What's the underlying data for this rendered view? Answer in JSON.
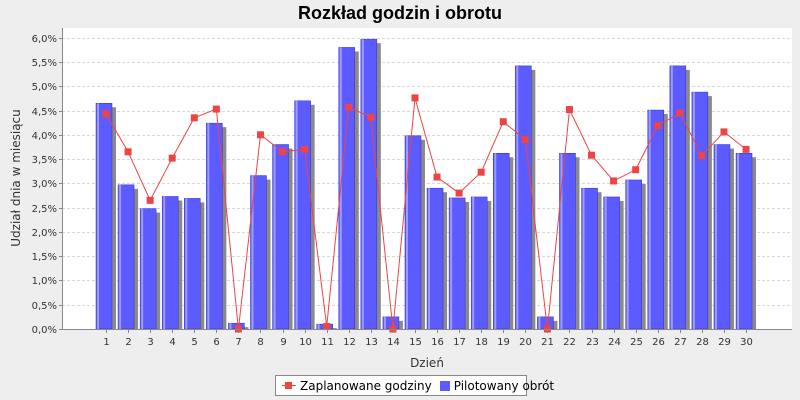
{
  "chart_data": {
    "type": "bar",
    "title": "Rozkład godzin i obrotu",
    "xlabel": "Dzień",
    "ylabel": "Udział dnia w miesiącu",
    "categories": [
      "1",
      "2",
      "3",
      "4",
      "5",
      "6",
      "7",
      "8",
      "9",
      "10",
      "11",
      "12",
      "13",
      "14",
      "15",
      "16",
      "17",
      "18",
      "19",
      "20",
      "21",
      "22",
      "23",
      "24",
      "25",
      "26",
      "27",
      "28",
      "29",
      "30"
    ],
    "ylim": [
      0,
      0.062
    ],
    "yticks": [
      0.0,
      0.005,
      0.01,
      0.015,
      0.02,
      0.025,
      0.03,
      0.035,
      0.04,
      0.045,
      0.05,
      0.055,
      0.06
    ],
    "ytick_labels": [
      "0,0%",
      "0,5%",
      "1,0%",
      "1,5%",
      "2,0%",
      "2,5%",
      "3,0%",
      "3,5%",
      "4,0%",
      "4,5%",
      "5,0%",
      "5,5%",
      "6,0%"
    ],
    "grid": true,
    "legend_position": "bottom",
    "series": [
      {
        "name": "Zaplanowane godziny",
        "type": "line",
        "color": "#ee4444",
        "values": [
          0.0443,
          0.0365,
          0.0265,
          0.0352,
          0.0435,
          0.0453,
          0.0,
          0.04,
          0.0365,
          0.037,
          0.0005,
          0.0457,
          0.0436,
          0.0,
          0.0476,
          0.0313,
          0.028,
          0.0323,
          0.0427,
          0.039,
          0.0,
          0.0452,
          0.0358,
          0.0305,
          0.0328,
          0.0419,
          0.0445,
          0.0357,
          0.0406,
          0.037
        ]
      },
      {
        "name": "Pilotowany obrót",
        "type": "bar",
        "color": "#5b5bff",
        "values": [
          0.0465,
          0.0297,
          0.0248,
          0.0273,
          0.0269,
          0.0424,
          0.0012,
          0.0316,
          0.038,
          0.047,
          0.001,
          0.058,
          0.0597,
          0.0025,
          0.0398,
          0.029,
          0.027,
          0.0272,
          0.0362,
          0.0542,
          0.0025,
          0.0362,
          0.029,
          0.0272,
          0.0307,
          0.0451,
          0.0542,
          0.0488,
          0.038,
          0.0362
        ]
      }
    ]
  }
}
